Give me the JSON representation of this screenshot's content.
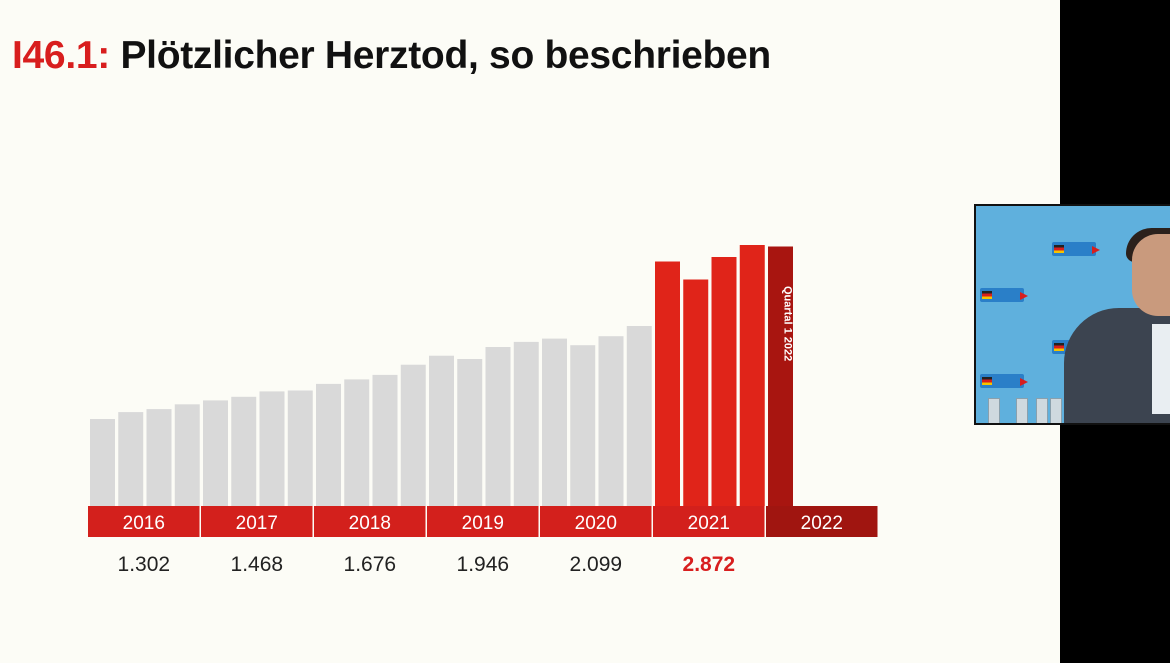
{
  "slide": {
    "title_code": "I46.1:",
    "title_text": " Plötzlicher Herztod, so beschrieben"
  },
  "chart_data": {
    "type": "bar",
    "title": "I46.1: Plötzlicher Herztod, so beschrieben",
    "years": [
      "2016",
      "2017",
      "2018",
      "2019",
      "2020",
      "2021",
      "2022"
    ],
    "annual_totals": [
      "1.302",
      "1.468",
      "1.676",
      "1.946",
      "2.099",
      "2.872",
      ""
    ],
    "highlight_year": "2021",
    "quarter_label": "Quartal 1 2022",
    "series": [
      {
        "values": [
          290,
          313,
          323,
          339,
          352,
          364,
          382,
          385,
          407,
          422,
          437,
          471,
          501,
          490,
          530,
          547,
          558,
          536,
          566,
          600,
          815,
          755,
          830,
          870,
          865
        ]
      }
    ],
    "ylim": [
      0,
      980
    ],
    "colors": {
      "past": "#d9d9d9",
      "year2021": "#e02419",
      "quarter2022": "#a81510",
      "year_band": "#d3201c",
      "year_band_2022": "#a01510",
      "highlight": "#d81e1e"
    }
  }
}
